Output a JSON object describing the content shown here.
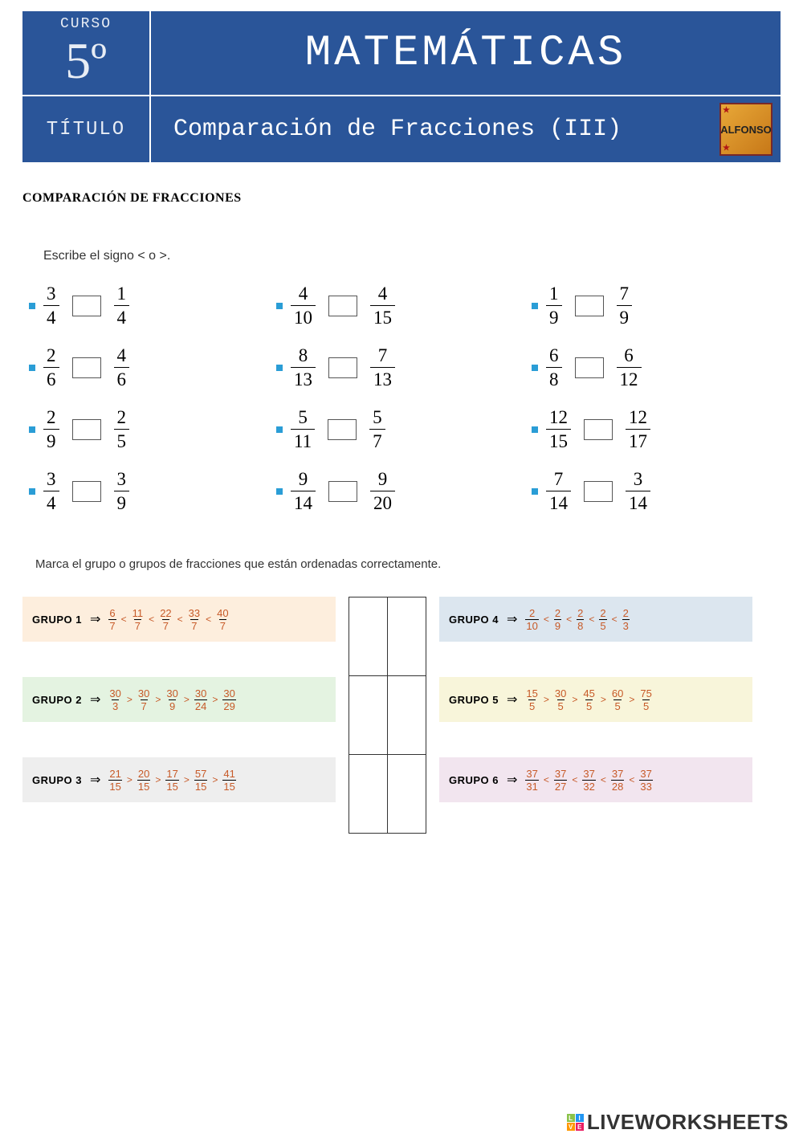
{
  "header": {
    "curso_label": "CURSO",
    "grade": "5º",
    "subject": "MATEMÁTICAS",
    "titulo_label": "TÍTULO",
    "title": "Comparación de Fracciones (III)",
    "logo_text": "ALFONSO"
  },
  "section_title": "COMPARACIÓN DE FRACCIONES",
  "instruction1": "Escribe el signo < o >.",
  "exercises": [
    {
      "f1": {
        "n": "3",
        "d": "4"
      },
      "f2": {
        "n": "1",
        "d": "4"
      }
    },
    {
      "f1": {
        "n": "4",
        "d": "10"
      },
      "f2": {
        "n": "4",
        "d": "15"
      }
    },
    {
      "f1": {
        "n": "1",
        "d": "9"
      },
      "f2": {
        "n": "7",
        "d": "9"
      }
    },
    {
      "f1": {
        "n": "2",
        "d": "6"
      },
      "f2": {
        "n": "4",
        "d": "6"
      }
    },
    {
      "f1": {
        "n": "8",
        "d": "13"
      },
      "f2": {
        "n": "7",
        "d": "13"
      }
    },
    {
      "f1": {
        "n": "6",
        "d": "8"
      },
      "f2": {
        "n": "6",
        "d": "12"
      }
    },
    {
      "f1": {
        "n": "2",
        "d": "9"
      },
      "f2": {
        "n": "2",
        "d": "5"
      }
    },
    {
      "f1": {
        "n": "5",
        "d": "11"
      },
      "f2": {
        "n": "5",
        "d": "7"
      }
    },
    {
      "f1": {
        "n": "12",
        "d": "15"
      },
      "f2": {
        "n": "12",
        "d": "17"
      }
    },
    {
      "f1": {
        "n": "3",
        "d": "4"
      },
      "f2": {
        "n": "3",
        "d": "9"
      }
    },
    {
      "f1": {
        "n": "9",
        "d": "14"
      },
      "f2": {
        "n": "9",
        "d": "20"
      }
    },
    {
      "f1": {
        "n": "7",
        "d": "14"
      },
      "f2": {
        "n": "3",
        "d": "14"
      }
    }
  ],
  "instruction2": "Marca el grupo o grupos de fracciones que están ordenadas correctamente.",
  "groups_left": [
    {
      "label": "GRUPO 1",
      "bg": "#fdeedd",
      "op": "<",
      "fracs": [
        {
          "n": "6",
          "d": "7"
        },
        {
          "n": "11",
          "d": "7"
        },
        {
          "n": "22",
          "d": "7"
        },
        {
          "n": "33",
          "d": "7"
        },
        {
          "n": "40",
          "d": "7"
        }
      ]
    },
    {
      "label": "GRUPO 2",
      "bg": "#e4f3e1",
      "op": ">",
      "fracs": [
        {
          "n": "30",
          "d": "3"
        },
        {
          "n": "30",
          "d": "7"
        },
        {
          "n": "30",
          "d": "9"
        },
        {
          "n": "30",
          "d": "24"
        },
        {
          "n": "30",
          "d": "29"
        }
      ]
    },
    {
      "label": "GRUPO 3",
      "bg": "#eeeeee",
      "op": ">",
      "fracs": [
        {
          "n": "21",
          "d": "15"
        },
        {
          "n": "20",
          "d": "15"
        },
        {
          "n": "17",
          "d": "15"
        },
        {
          "n": "57",
          "d": "15"
        },
        {
          "n": "41",
          "d": "15"
        }
      ]
    }
  ],
  "groups_right": [
    {
      "label": "GRUPO 4",
      "bg": "#dce6ef",
      "op": "<",
      "fracs": [
        {
          "n": "2",
          "d": "10"
        },
        {
          "n": "2",
          "d": "9"
        },
        {
          "n": "2",
          "d": "8"
        },
        {
          "n": "2",
          "d": "5"
        },
        {
          "n": "2",
          "d": "3"
        }
      ]
    },
    {
      "label": "GRUPO 5",
      "bg": "#f8f5da",
      "op": ">",
      "fracs": [
        {
          "n": "15",
          "d": "5"
        },
        {
          "n": "30",
          "d": "5"
        },
        {
          "n": "45",
          "d": "5"
        },
        {
          "n": "60",
          "d": "5"
        },
        {
          "n": "75",
          "d": "5"
        }
      ]
    },
    {
      "label": "GRUPO 6",
      "bg": "#f2e5ef",
      "op": "<",
      "fracs": [
        {
          "n": "37",
          "d": "31"
        },
        {
          "n": "37",
          "d": "27"
        },
        {
          "n": "37",
          "d": "32"
        },
        {
          "n": "37",
          "d": "28"
        },
        {
          "n": "37",
          "d": "33"
        }
      ]
    }
  ],
  "watermark": {
    "text": "LIVEWORKSHEETS",
    "colors": [
      "#8bc34a",
      "#2196f3",
      "#ff9800",
      "#e91e63"
    ],
    "letters": [
      "L",
      "I",
      "V",
      "E"
    ]
  }
}
